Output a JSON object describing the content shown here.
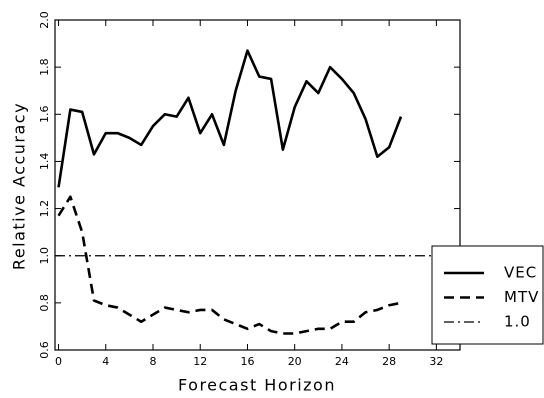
{
  "chart_data": {
    "type": "line",
    "xlabel": "Forecast Horizon",
    "ylabel": "Relative Accuracy",
    "x": [
      0,
      1,
      2,
      3,
      4,
      5,
      6,
      7,
      8,
      9,
      10,
      11,
      12,
      13,
      14,
      15,
      16,
      17,
      18,
      19,
      20,
      21,
      22,
      23,
      24,
      25,
      26,
      27,
      28,
      29
    ],
    "series": [
      {
        "name": "VEC",
        "color": "#000000",
        "dash": "solid",
        "values": [
          1.29,
          1.62,
          1.61,
          1.43,
          1.52,
          1.52,
          1.5,
          1.47,
          1.55,
          1.6,
          1.59,
          1.67,
          1.52,
          1.6,
          1.47,
          1.7,
          1.87,
          1.76,
          1.75,
          1.45,
          1.63,
          1.74,
          1.69,
          1.8,
          1.75,
          1.69,
          1.58,
          1.42,
          1.46,
          1.59
        ]
      },
      {
        "name": "MTV",
        "color": "#000000",
        "dash": "dashed",
        "values": [
          1.17,
          1.25,
          1.1,
          0.81,
          0.79,
          0.78,
          0.75,
          0.72,
          0.75,
          0.78,
          0.77,
          0.76,
          0.77,
          0.77,
          0.73,
          0.71,
          0.69,
          0.71,
          0.68,
          0.67,
          0.67,
          0.68,
          0.69,
          0.69,
          0.72,
          0.72,
          0.76,
          0.77,
          0.79,
          0.8
        ]
      }
    ],
    "reference_line": {
      "name": "1.0",
      "value": 1.0,
      "color": "#000000",
      "dash": "dashdot"
    },
    "xlim": [
      -0.3,
      34
    ],
    "xticks": [
      0,
      4,
      8,
      12,
      16,
      20,
      24,
      28,
      32
    ],
    "ylim": [
      0.6,
      2.0
    ],
    "yticks": [
      {
        "value": 0.6,
        "label": "0.6"
      },
      {
        "value": 0.8,
        "label": "0.8"
      },
      {
        "value": 1.0,
        "label": "1.0"
      },
      {
        "value": 1.2,
        "label": "1.2"
      },
      {
        "value": 1.4,
        "label": "1.4"
      },
      {
        "value": 1.6,
        "label": "1.6"
      },
      {
        "value": 1.8,
        "label": "1.8"
      },
      {
        "value": 2.0,
        "label": "2.0"
      }
    ],
    "legend": "lower right",
    "grid": false
  }
}
